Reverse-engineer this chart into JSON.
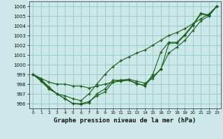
{
  "xlabel": "Graphe pression niveau de la mer (hPa)",
  "background_color": "#cce8e8",
  "grid_color": "#99cccc",
  "line_color": "#1a5c1a",
  "ylim": [
    995.5,
    1006.5
  ],
  "xlim": [
    -0.5,
    23.5
  ],
  "yticks": [
    996,
    997,
    998,
    999,
    1000,
    1001,
    1002,
    1003,
    1004,
    1005,
    1006
  ],
  "xticks": [
    0,
    1,
    2,
    3,
    4,
    5,
    6,
    7,
    8,
    9,
    10,
    11,
    12,
    13,
    14,
    15,
    16,
    17,
    18,
    19,
    20,
    21,
    22,
    23
  ],
  "line1": [
    999.0,
    998.6,
    998.2,
    998.0,
    998.0,
    997.8,
    997.8,
    997.6,
    997.8,
    998.0,
    998.2,
    998.4,
    998.5,
    998.3,
    998.1,
    998.6,
    999.6,
    1001.2,
    1001.8,
    1002.5,
    1003.5,
    1004.5,
    1005.0,
    1006.0
  ],
  "line2": [
    999.0,
    998.5,
    997.7,
    997.0,
    996.5,
    996.0,
    996.0,
    996.2,
    996.8,
    997.2,
    998.2,
    998.3,
    998.4,
    998.1,
    997.8,
    998.8,
    999.5,
    1002.2,
    1002.2,
    1003.0,
    1004.0,
    1005.2,
    1005.0,
    1006.0
  ],
  "line3": [
    999.0,
    998.4,
    997.6,
    997.0,
    996.5,
    996.0,
    995.9,
    996.1,
    997.0,
    997.5,
    998.4,
    998.4,
    998.4,
    998.0,
    997.9,
    999.0,
    1001.3,
    1002.3,
    1002.3,
    1003.1,
    1004.1,
    1005.3,
    1005.1,
    1006.0
  ],
  "line4": [
    999.0,
    998.3,
    997.5,
    997.0,
    996.8,
    996.5,
    996.3,
    997.0,
    998.0,
    999.0,
    999.8,
    1000.4,
    1000.8,
    1001.2,
    1001.5,
    1002.0,
    1002.5,
    1003.0,
    1003.3,
    1003.7,
    1004.2,
    1004.7,
    1005.2,
    1006.0
  ]
}
